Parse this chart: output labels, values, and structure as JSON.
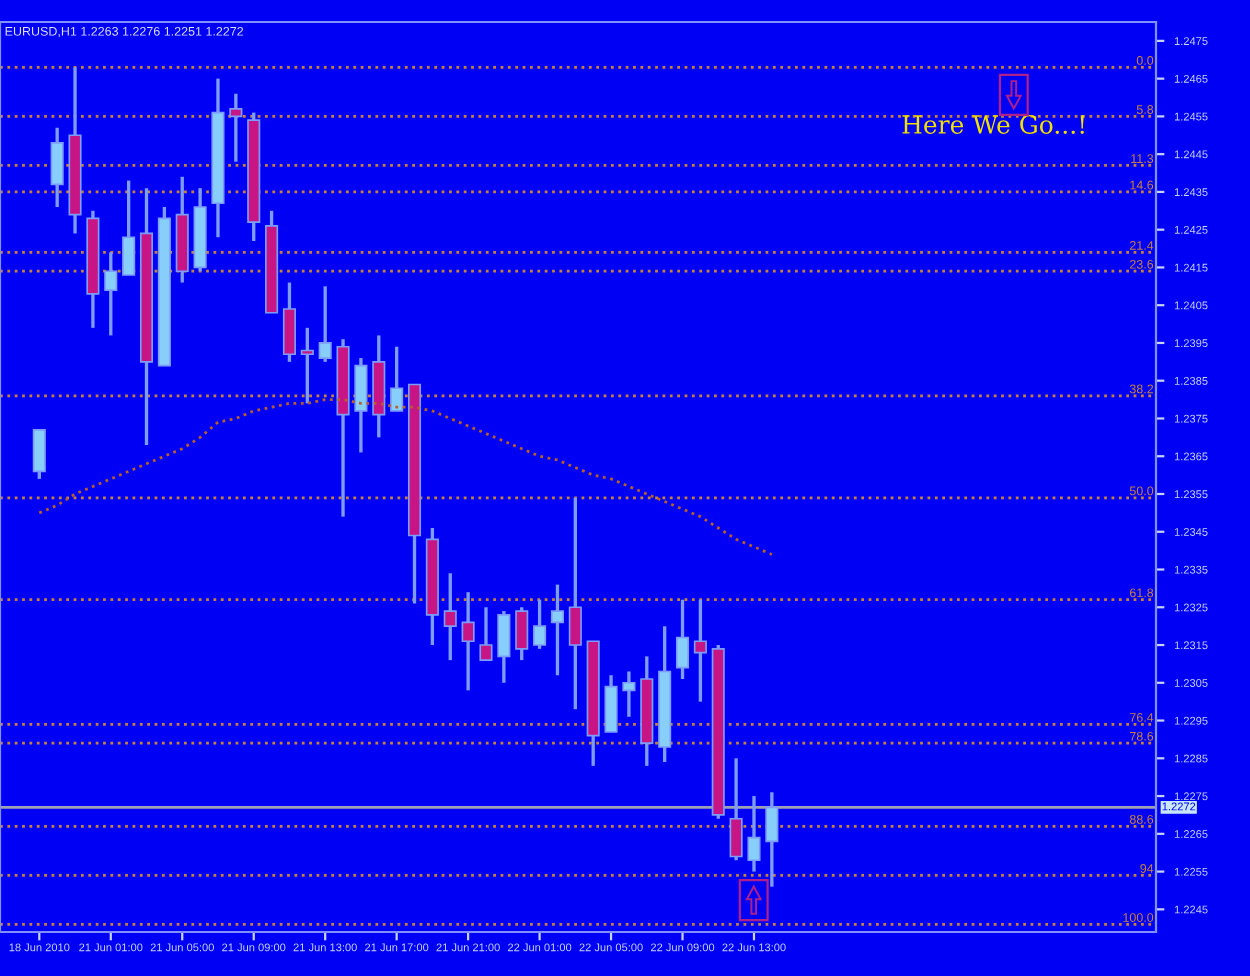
{
  "chart_data": {
    "type": "candlestick",
    "title": "EURUSD,H1 1.2263 1.2276 1.2251 1.2272",
    "categories": [
      "18 Jun 2010",
      null,
      null,
      null,
      "21 Jun 01:00",
      null,
      null,
      null,
      "21 Jun 05:00",
      null,
      null,
      null,
      "21 Jun 09:00",
      null,
      null,
      null,
      "21 Jun 13:00",
      null,
      null,
      null,
      "21 Jun 17:00",
      null,
      null,
      null,
      "21 Jun 21:00",
      null,
      null,
      null,
      "22 Jun 01:00",
      null,
      null,
      null,
      "22 Jun 05:00",
      null,
      null,
      null,
      "22 Jun 09:00",
      null,
      null,
      null,
      "22 Jun 13:00",
      null
    ],
    "ohlc": [
      [
        1.2361,
        1.2372,
        1.2359,
        1.2372
      ],
      [
        1.2437,
        1.2452,
        1.2431,
        1.2448
      ],
      [
        1.245,
        1.2468,
        1.2424,
        1.2429
      ],
      [
        1.2428,
        1.243,
        1.2399,
        1.2408
      ],
      [
        1.2409,
        1.2419,
        1.2397,
        1.2414
      ],
      [
        1.2413,
        1.2438,
        1.2413,
        1.2423
      ],
      [
        1.2424,
        1.2436,
        1.2368,
        1.239
      ],
      [
        1.2389,
        1.2431,
        1.2389,
        1.2428
      ],
      [
        1.2429,
        1.2439,
        1.2411,
        1.2414
      ],
      [
        1.2415,
        1.2436,
        1.2414,
        1.2431
      ],
      [
        1.2432,
        1.2465,
        1.2423,
        1.2456
      ],
      [
        1.2457,
        1.2461,
        1.2443,
        1.2455
      ],
      [
        1.2454,
        1.2456,
        1.2422,
        1.2427
      ],
      [
        1.2426,
        1.243,
        1.2403,
        1.2403
      ],
      [
        1.2404,
        1.2411,
        1.239,
        1.2392
      ],
      [
        1.2393,
        1.2399,
        1.2379,
        1.2392
      ],
      [
        1.2391,
        1.241,
        1.239,
        1.2395
      ],
      [
        1.2394,
        1.2396,
        1.2349,
        1.2376
      ],
      [
        1.2377,
        1.2391,
        1.2366,
        1.2389
      ],
      [
        1.239,
        1.2397,
        1.237,
        1.2376
      ],
      [
        1.2377,
        1.2394,
        1.2377,
        1.2383
      ],
      [
        1.2384,
        1.2384,
        1.2326,
        1.2344
      ],
      [
        1.2343,
        1.2346,
        1.2315,
        1.2323
      ],
      [
        1.2324,
        1.2334,
        1.2311,
        1.232
      ],
      [
        1.2321,
        1.2329,
        1.2303,
        1.2316
      ],
      [
        1.2315,
        1.2325,
        1.2311,
        1.2311
      ],
      [
        1.2312,
        1.2324,
        1.2305,
        1.2323
      ],
      [
        1.2324,
        1.2325,
        1.2311,
        1.2314
      ],
      [
        1.2315,
        1.2327,
        1.2314,
        1.232
      ],
      [
        1.2321,
        1.2331,
        1.2307,
        1.2324
      ],
      [
        1.2325,
        1.2354,
        1.2298,
        1.2315
      ],
      [
        1.2316,
        1.2316,
        1.2283,
        1.2291
      ],
      [
        1.2292,
        1.2307,
        1.2292,
        1.2304
      ],
      [
        1.2303,
        1.2308,
        1.2296,
        1.2305
      ],
      [
        1.2306,
        1.2312,
        1.2283,
        1.2289
      ],
      [
        1.2288,
        1.232,
        1.2284,
        1.2308
      ],
      [
        1.2309,
        1.2327,
        1.2306,
        1.2317
      ],
      [
        1.2316,
        1.2327,
        1.23,
        1.2313
      ],
      [
        1.2314,
        1.2315,
        1.2269,
        1.227
      ],
      [
        1.2269,
        1.2285,
        1.2258,
        1.2259
      ],
      [
        1.2258,
        1.2275,
        1.2255,
        1.2264
      ],
      [
        1.2263,
        1.2276,
        1.2251,
        1.2272
      ]
    ],
    "colors": [
      "#87cefa",
      "#87cefa",
      "#c71585",
      "#c71585",
      "#87cefa",
      "#87cefa",
      "#c71585",
      "#87cefa",
      "#c71585",
      "#87cefa",
      "#87cefa",
      "#c71585",
      "#c71585",
      "#c71585",
      "#c71585",
      "#c71585",
      "#87cefa",
      "#c71585",
      "#87cefa",
      "#c71585",
      "#87cefa",
      "#c71585",
      "#c71585",
      "#c71585",
      "#c71585",
      "#c71585",
      "#87cefa",
      "#c71585",
      "#87cefa",
      "#87cefa",
      "#c71585",
      "#c71585",
      "#87cefa",
      "#87cefa",
      "#c71585",
      "#87cefa",
      "#87cefa",
      "#c71585",
      "#c71585",
      "#c71585",
      "#87cefa",
      "#87cefa"
    ],
    "series": [
      {
        "type": "line",
        "color": "#b8602c",
        "line_style": "dotted",
        "values": [
          1.235,
          1.2352,
          1.2355,
          1.2357,
          1.2359,
          1.2361,
          1.2363,
          1.2365,
          1.2367,
          1.237,
          1.2374,
          1.2375,
          1.2377,
          1.2378,
          1.2379,
          1.2379,
          1.238,
          1.238,
          1.2379,
          1.2379,
          1.2378,
          1.2378,
          1.2377,
          1.2375,
          1.2373,
          1.2371,
          1.2369,
          1.2367,
          1.2365,
          1.2364,
          1.2362,
          1.236,
          1.2359,
          1.2357,
          1.2355,
          1.2353,
          1.2351,
          1.2349,
          1.2346,
          1.2343,
          1.2341,
          1.2339
        ]
      }
    ],
    "ylim": [
      1.2239,
      1.248
    ],
    "yticks": [
      1.2475,
      1.2465,
      1.2455,
      1.2445,
      1.2435,
      1.2425,
      1.2415,
      1.2405,
      1.2395,
      1.2385,
      1.2375,
      1.2365,
      1.2355,
      1.2345,
      1.2335,
      1.2325,
      1.2315,
      1.2305,
      1.2295,
      1.2285,
      1.2275,
      1.2265,
      1.2255,
      1.2245
    ],
    "ref_lines": [
      {
        "axis": "y",
        "value": 1.2468,
        "color": "#c8823c",
        "line_style": "dotted"
      },
      {
        "axis": "y",
        "value": 1.2455,
        "color": "#c8823c",
        "line_style": "dotted"
      },
      {
        "axis": "y",
        "value": 1.2442,
        "color": "#c8823c",
        "line_style": "dotted"
      },
      {
        "axis": "y",
        "value": 1.2435,
        "color": "#c8823c",
        "line_style": "dotted"
      },
      {
        "axis": "y",
        "value": 1.2419,
        "color": "#c8823c",
        "line_style": "dotted"
      },
      {
        "axis": "y",
        "value": 1.2414,
        "color": "#c8823c",
        "line_style": "dotted"
      },
      {
        "axis": "y",
        "value": 1.2381,
        "color": "#c8823c",
        "line_style": "dotted"
      },
      {
        "axis": "y",
        "value": 1.2354,
        "color": "#c8823c",
        "line_style": "dotted"
      },
      {
        "axis": "y",
        "value": 1.2327,
        "color": "#c8823c",
        "line_style": "dotted"
      },
      {
        "axis": "y",
        "value": 1.2294,
        "color": "#c8823c",
        "line_style": "dotted"
      },
      {
        "axis": "y",
        "value": 1.2289,
        "color": "#c8823c",
        "line_style": "dotted"
      },
      {
        "axis": "y",
        "value": 1.2267,
        "color": "#c8823c",
        "line_style": "dotted"
      },
      {
        "axis": "y",
        "value": 1.2254,
        "color": "#c8823c",
        "line_style": "dotted"
      },
      {
        "axis": "y",
        "value": 1.2241,
        "color": "#c8823c",
        "line_style": "dotted"
      },
      {
        "axis": "y",
        "value": 1.2272,
        "label": "1.2272",
        "color": "#a0a0b4",
        "line_style": "solid"
      }
    ],
    "annotations": [
      "Here We Go...!",
      {
        "text": "0.0",
        "y": 1.2468
      },
      {
        "text": "5.8",
        "y": 1.2455
      },
      {
        "text": "11.3",
        "y": 1.2442
      },
      {
        "text": "14.6",
        "y": 1.2435
      },
      {
        "text": "21.4",
        "y": 1.2419
      },
      {
        "text": "23.6",
        "y": 1.2414
      },
      {
        "text": "38.2",
        "y": 1.2381
      },
      {
        "text": "50.0",
        "y": 1.2354
      },
      {
        "text": "61.8",
        "y": 1.2327
      },
      {
        "text": "76.4",
        "y": 1.2294
      },
      {
        "text": "78.6",
        "y": 1.2289
      },
      {
        "text": "88.6",
        "y": 1.2267
      },
      {
        "text": "94",
        "y": 1.2254
      },
      {
        "text": "100.0",
        "y": 1.2241
      }
    ],
    "grid": false,
    "legend": false
  }
}
